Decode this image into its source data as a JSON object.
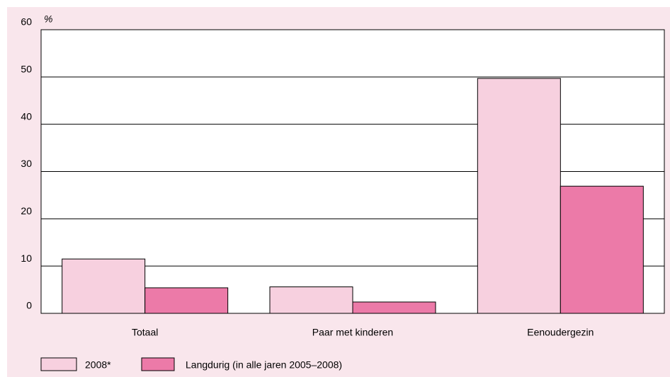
{
  "chart_data": {
    "type": "bar",
    "y_label": "%",
    "categories": [
      "Totaal",
      "Paar met kinderen",
      "Eenoudergezin"
    ],
    "series": [
      {
        "name": "2008*",
        "color": "#f7d0df",
        "values": [
          11.5,
          5.6,
          49.7
        ]
      },
      {
        "name": "Langdurig (in alle jaren 2005–2008)",
        "color": "#ec7aa8",
        "values": [
          5.4,
          2.4,
          26.9
        ]
      }
    ],
    "ylim": [
      0,
      60
    ],
    "yticks": [
      0,
      10,
      20,
      30,
      40,
      50,
      60
    ],
    "grid": true,
    "legend": "bottom-left"
  }
}
